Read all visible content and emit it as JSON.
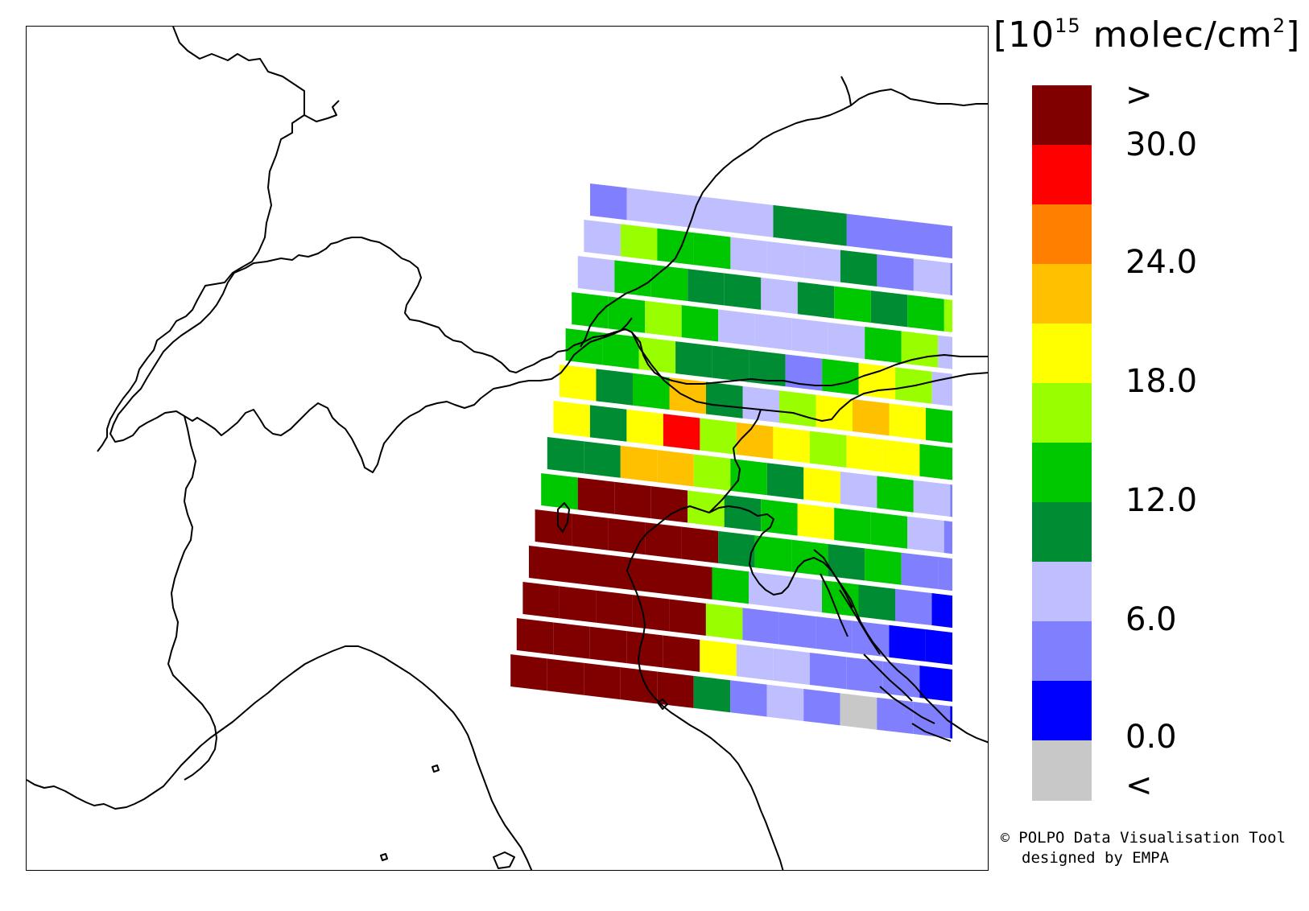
{
  "colorbar": {
    "unit": {
      "prefix": "[10",
      "exponent": "15",
      "middle": " molec/cm",
      "exponent2": "2",
      "suffix": "]"
    },
    "over_label": ">",
    "under_label": "<",
    "tick_labels": [
      "30.0",
      "24.0",
      "18.0",
      "12.0",
      "6.0",
      "0.0"
    ],
    "segment_colors": [
      "#800000",
      "#ff0000",
      "#ff8000",
      "#ffc000",
      "#ffff00",
      "#99ff00",
      "#00c800",
      "#008c32",
      "#bfbfff",
      "#8080ff",
      "#0000ff",
      "#c8c8c8"
    ]
  },
  "credit": {
    "line1": "POLPO Data Visualisation Tool",
    "line2": "designed by EMPA",
    "copyright_symbol": "©"
  },
  "palette": {
    "D": "#800000",
    "R": "#ff0000",
    "O": "#ff8000",
    "A": "#ffc000",
    "Y": "#ffff00",
    "L": "#99ff00",
    "G": "#00c800",
    "K": "#008c32",
    "P": "#bfbfff",
    "M": "#8080ff",
    "B": "#0000ff",
    "X": "#c8c8c8"
  },
  "scanlines": [
    "MPPPPKKMMMMMM",
    "PLGGPPPKMPMPP",
    "PGGKKPKGKGLM",
    "GGLGPPPPGLPP",
    "GGLKKKMGYLPP",
    "YKGAKPLYAYGP",
    "YKYRLAYLYYGP",
    "KKAALGKYPGPM",
    "GDDDLKGYGGPM",
    "DDDDDKGGKGMM",
    "DDDDDGPPGKMB",
    "DDDDDLMMMMBBX",
    "DDDDDYPPMMMBK",
    "DDDDDKMPMXMMBB"
  ]
}
